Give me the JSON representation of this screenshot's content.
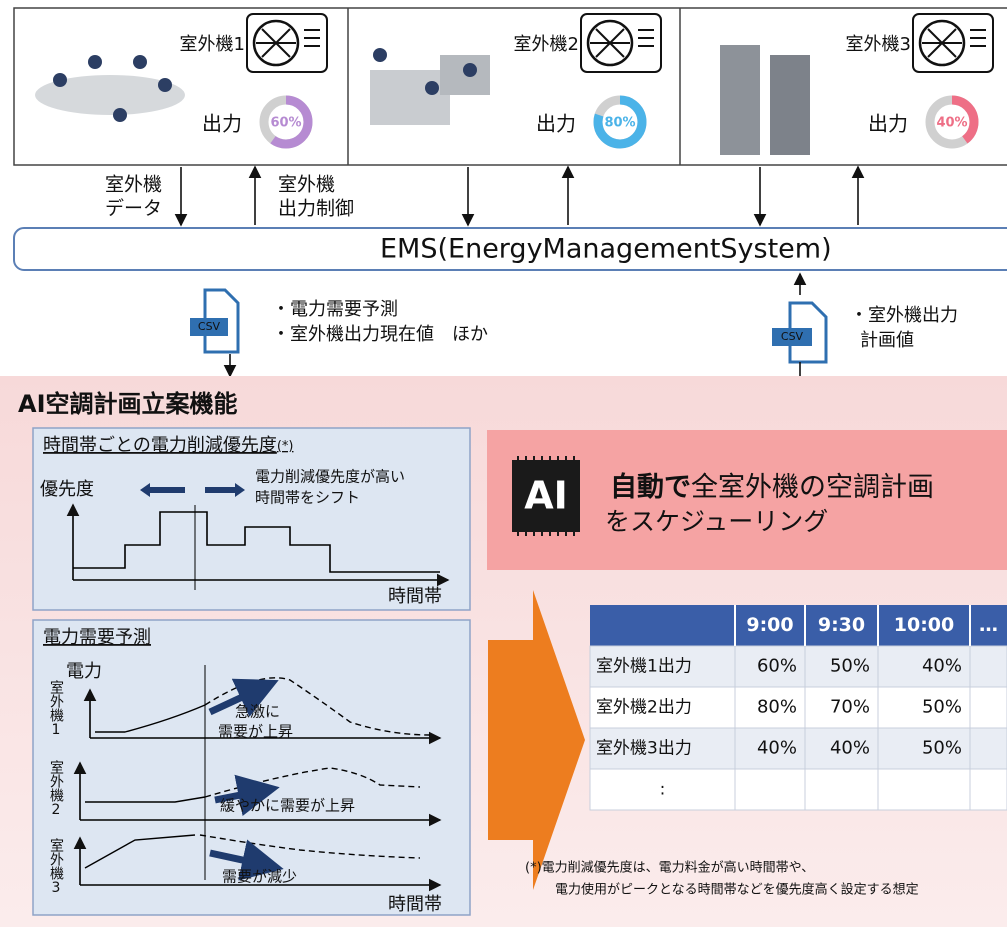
{
  "units": [
    {
      "name": "室外機1",
      "output_label": "出力",
      "output": {
        "value": 60,
        "label": "60%"
      },
      "color": "#b68bd2"
    },
    {
      "name": "室外機2",
      "output_label": "出力",
      "output": {
        "value": 80,
        "label": "80%"
      },
      "color": "#4bb3e8"
    },
    {
      "name": "室外機3",
      "output_label": "出力",
      "output": {
        "value": 40,
        "label": "40%"
      },
      "color": "#ee6f86"
    }
  ],
  "flow_labels": {
    "down": [
      "室外機",
      "データ"
    ],
    "up": [
      "室外機",
      "出力制御"
    ]
  },
  "ems": "EMS(EnergyManagementSystem)",
  "csv_in": {
    "icon": "CSV",
    "notes": [
      "・電力需要予測",
      "・室外機出力現在値　ほか"
    ]
  },
  "csv_out": {
    "icon": "CSV",
    "notes": [
      "・室外機出力",
      "計画値"
    ]
  },
  "section_title": "AI空調計画立案機能",
  "priority_panel": {
    "title": "時間帯ごとの電力削減優先度",
    "title_note": "(*)",
    "y_label": "優先度",
    "annotation": [
      "電力削減優先度が高い",
      "時間帯をシフト"
    ],
    "x_label": "時間帯"
  },
  "demand_panel": {
    "title": "電力需要予測",
    "y_label": "電力",
    "rows": [
      {
        "label": "室外機1",
        "annotation": [
          "急激に",
          "需要が上昇"
        ]
      },
      {
        "label": "室外機2",
        "annotation": [
          "緩やかに需要が上昇"
        ]
      },
      {
        "label": "室外機3",
        "annotation": [
          "需要が減少"
        ]
      }
    ],
    "x_label": "時間帯"
  },
  "ai_box": {
    "icon": "AI",
    "emphasis": "自動で",
    "text": [
      "全室外機の空調計画",
      "をスケジューリング"
    ]
  },
  "table": {
    "header": [
      "9:00",
      "9:30",
      "10:00",
      "…"
    ],
    "rows": [
      [
        "室外機1出力",
        "60%",
        "50%",
        "40%"
      ],
      [
        "室外機2出力",
        "80%",
        "70%",
        "50%"
      ],
      [
        "室外機3出力",
        "40%",
        "40%",
        "50%"
      ],
      [
        ":"
      ]
    ]
  },
  "footnote": [
    "(*)電力削減優先度は、電力料金が高い時間帯や、",
    "電力使用がピークとなる時間帯などを優先度高く設定する想定"
  ]
}
